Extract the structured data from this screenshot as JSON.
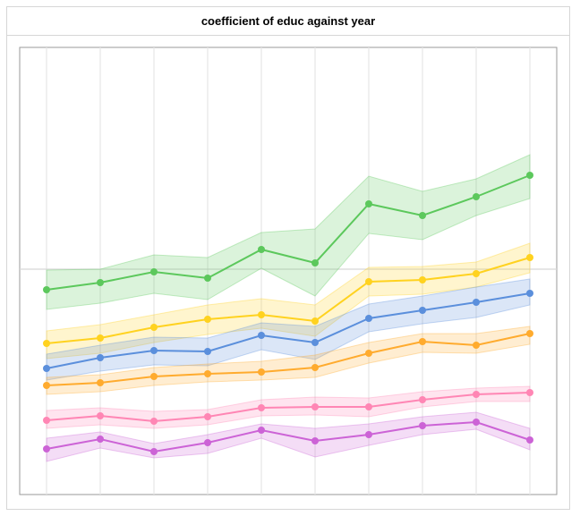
{
  "chart_data": {
    "type": "line",
    "title": "coefficient of educ against year",
    "xlabel": "",
    "ylabel": "",
    "x": [
      1,
      2,
      3,
      4,
      5,
      6,
      7,
      8,
      9,
      10
    ],
    "ylim": [
      0,
      500
    ],
    "zero_line": 252,
    "series": [
      {
        "color": "#5cc85c",
        "values": [
          229,
          237,
          249,
          242,
          274,
          259,
          325,
          312,
          333,
          357
        ],
        "lower": [
          207,
          214,
          225,
          218,
          253,
          222,
          292,
          285,
          312,
          331
        ],
        "upper": [
          251,
          252,
          268,
          265,
          293,
          297,
          356,
          339,
          353,
          380
        ]
      },
      {
        "color": "#ffd21f",
        "values": [
          169,
          175,
          187,
          196,
          201,
          194,
          238,
          240,
          247,
          265
        ],
        "lower": [
          152,
          158,
          170,
          179,
          186,
          177,
          222,
          224,
          232,
          248
        ],
        "upper": [
          183,
          190,
          201,
          212,
          219,
          212,
          254,
          255,
          260,
          281
        ]
      },
      {
        "color": "#5b8fdc",
        "values": [
          141,
          153,
          161,
          160,
          178,
          170,
          197,
          206,
          215,
          225
        ],
        "lower": [
          128,
          138,
          145,
          144,
          162,
          151,
          182,
          191,
          198,
          212
        ],
        "upper": [
          157,
          167,
          176,
          175,
          192,
          188,
          213,
          222,
          232,
          241
        ]
      },
      {
        "color": "#ffab2e",
        "values": [
          122,
          125,
          132,
          135,
          137,
          142,
          158,
          171,
          167,
          180
        ],
        "lower": [
          112,
          115,
          122,
          126,
          128,
          131,
          147,
          159,
          158,
          168
        ],
        "upper": [
          131,
          134,
          142,
          146,
          149,
          156,
          170,
          180,
          180,
          188
        ]
      },
      {
        "color": "#ff86b4",
        "values": [
          83,
          88,
          82,
          87,
          97,
          98,
          98,
          106,
          112,
          114
        ],
        "lower": [
          74,
          78,
          74,
          78,
          88,
          89,
          87,
          98,
          104,
          104
        ],
        "upper": [
          94,
          97,
          93,
          95,
          106,
          109,
          108,
          115,
          119,
          121
        ]
      },
      {
        "color": "#cc63d6",
        "values": [
          51,
          62,
          48,
          58,
          72,
          60,
          67,
          77,
          81,
          61
        ],
        "lower": [
          37,
          52,
          41,
          46,
          63,
          42,
          55,
          67,
          73,
          50
        ],
        "upper": [
          63,
          70,
          57,
          67,
          79,
          74,
          79,
          87,
          92,
          74
        ]
      }
    ]
  }
}
